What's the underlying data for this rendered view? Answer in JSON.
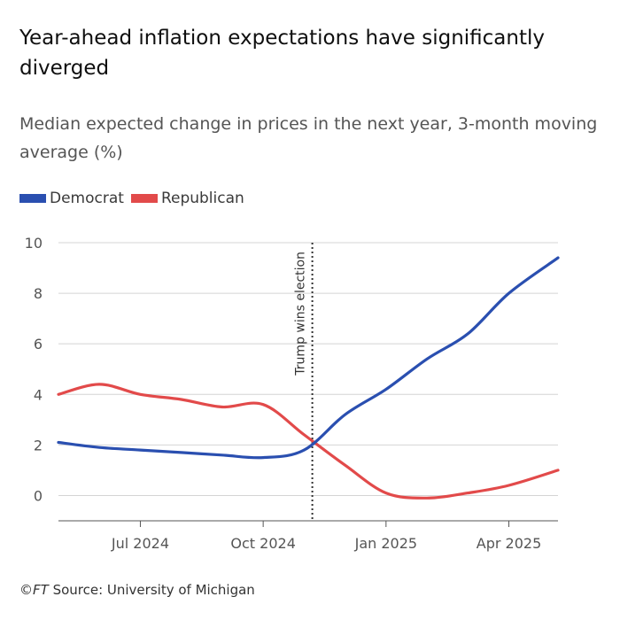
{
  "chart_data": {
    "type": "line",
    "title": "Year-ahead inflation expectations have significantly diverged",
    "subtitle": "Median expected change in prices in the next year, 3-month moving average (%)",
    "source": "©FT Source: University of Michigan",
    "source_brand": "©FT",
    "source_text": " Source: University of Michigan",
    "ylim": [
      -1,
      10
    ],
    "yticks": [
      0,
      2,
      4,
      6,
      8,
      10
    ],
    "xlim": [
      0,
      12.2
    ],
    "xticks": [
      {
        "label": "Jul 2024",
        "x": 2
      },
      {
        "label": "Oct 2024",
        "x": 5
      },
      {
        "label": "Jan 2025",
        "x": 8
      },
      {
        "label": "Apr 2025",
        "x": 11
      }
    ],
    "annotation": {
      "label": "Trump wins election",
      "x": 6.2
    },
    "series": [
      {
        "name": "Democrat",
        "color": "#2a4fb0",
        "x": [
          0,
          1,
          2,
          3,
          4,
          5,
          6,
          7,
          8,
          9,
          10,
          11,
          12.2
        ],
        "values": [
          2.1,
          1.9,
          1.8,
          1.7,
          1.6,
          1.5,
          1.8,
          3.2,
          4.2,
          5.4,
          6.4,
          8.0,
          9.4
        ]
      },
      {
        "name": "Republican",
        "color": "#e24a4a",
        "x": [
          0,
          1,
          2,
          3,
          4,
          5,
          6,
          7,
          8,
          9,
          10,
          11,
          12.2
        ],
        "values": [
          4.0,
          4.4,
          4.0,
          3.8,
          3.5,
          3.6,
          2.4,
          1.2,
          0.1,
          -0.1,
          0.1,
          0.4,
          1.0
        ]
      }
    ]
  }
}
